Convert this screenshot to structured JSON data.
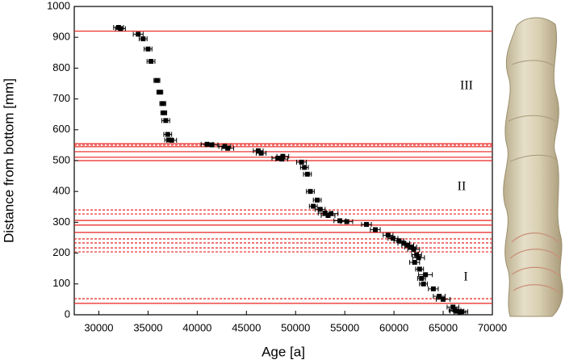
{
  "chart_data": {
    "type": "scatter",
    "x_label": "Age [a]",
    "y_label": "Distance from bottom [mm]",
    "xlim": [
      27500,
      70000
    ],
    "ylim": [
      0,
      1000
    ],
    "xticks": [
      30000,
      35000,
      40000,
      45000,
      50000,
      55000,
      60000,
      65000,
      70000
    ],
    "yticks": [
      0,
      100,
      200,
      300,
      400,
      500,
      600,
      700,
      800,
      900,
      1000
    ],
    "marker_color": "#000000",
    "line_color": "#e8231e",
    "hlines": [
      {
        "value": 920,
        "style": "solid"
      },
      {
        "value": 555,
        "style": "solid"
      },
      {
        "value": 550,
        "style": "dashed"
      },
      {
        "value": 545,
        "style": "solid"
      },
      {
        "value": 529,
        "style": "solid"
      },
      {
        "value": 511,
        "style": "solid"
      },
      {
        "value": 500,
        "style": "solid"
      },
      {
        "value": 340,
        "style": "dashed"
      },
      {
        "value": 327,
        "style": "dashed"
      },
      {
        "value": 306,
        "style": "solid"
      },
      {
        "value": 291,
        "style": "solid"
      },
      {
        "value": 267,
        "style": "solid"
      },
      {
        "value": 246,
        "style": "dashed"
      },
      {
        "value": 233,
        "style": "dashed"
      },
      {
        "value": 217,
        "style": "dashed"
      },
      {
        "value": 204,
        "style": "dashed"
      },
      {
        "value": 52,
        "style": "dashed"
      },
      {
        "value": 37,
        "style": "solid"
      }
    ],
    "annotations": [
      "III",
      "II",
      "I"
    ],
    "x": [
      32000,
      32200,
      34000,
      34500,
      35000,
      35300,
      35900,
      36200,
      36500,
      36600,
      36800,
      37000,
      37100,
      37400,
      41000,
      41500,
      42800,
      43100,
      46200,
      46500,
      48200,
      48600,
      48700,
      50600,
      50900,
      51200,
      51500,
      51800,
      52200,
      52500,
      53000,
      53300,
      53600,
      54500,
      55200,
      57200,
      58100,
      59400,
      59900,
      60500,
      61000,
      61400,
      61700,
      62000,
      62100,
      62300,
      62500,
      62600,
      62800,
      63000,
      63200,
      64000,
      64600,
      65000,
      66000,
      66200,
      66400,
      66700,
      66900
    ],
    "values": [
      932,
      928,
      910,
      895,
      862,
      822,
      760,
      722,
      685,
      655,
      630,
      585,
      567,
      566,
      553,
      551,
      546,
      540,
      532,
      524,
      508,
      505,
      514,
      495,
      478,
      456,
      400,
      352,
      372,
      342,
      330,
      322,
      328,
      305,
      302,
      293,
      276,
      258,
      248,
      240,
      232,
      226,
      220,
      212,
      170,
      195,
      185,
      148,
      118,
      100,
      130,
      84,
      60,
      50,
      25,
      15,
      12,
      8,
      10
    ],
    "xerr": [
      500,
      500,
      500,
      400,
      400,
      400,
      300,
      300,
      300,
      300,
      400,
      400,
      400,
      500,
      600,
      600,
      600,
      600,
      500,
      500,
      600,
      600,
      600,
      500,
      400,
      400,
      400,
      400,
      400,
      500,
      700,
      700,
      700,
      600,
      600,
      500,
      500,
      500,
      500,
      500,
      600,
      600,
      600,
      600,
      500,
      500,
      600,
      400,
      400,
      400,
      700,
      500,
      600,
      700,
      600,
      600,
      700,
      600,
      600
    ]
  }
}
